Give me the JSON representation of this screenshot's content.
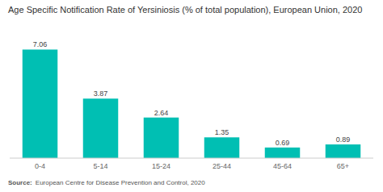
{
  "chart_data": {
    "type": "bar",
    "title": "Age Specific Notification Rate of Yersiniosis (% of total population), European Union, 2020",
    "categories": [
      "0-4",
      "5-14",
      "15-24",
      "25-44",
      "45-64",
      "65+"
    ],
    "values": [
      7.06,
      3.87,
      2.64,
      1.35,
      0.69,
      0.89
    ],
    "color": "#00BFB3",
    "ylim": [
      0,
      8.5
    ],
    "grid": false,
    "data_labels": true,
    "tick_labels": "x",
    "annotations": [
      "Source:",
      "European Centre for Disease Prevention and Control, 2020"
    ]
  }
}
